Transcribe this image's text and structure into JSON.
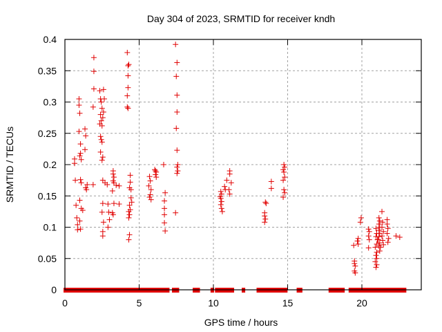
{
  "chart_data": {
    "type": "scatter",
    "title": "Day 304 of 2023, SRMTID for receiver kndh",
    "xlabel": "GPS time / hours",
    "ylabel": "SRMTID / TECUs",
    "xlim": [
      0,
      24
    ],
    "ylim": [
      0,
      0.4
    ],
    "xticks": [
      0,
      5,
      10,
      15,
      20
    ],
    "xtick_labels": [
      "0",
      "5",
      "10",
      "15",
      "20"
    ],
    "yticks": [
      0,
      0.05,
      0.1,
      0.15,
      0.2,
      0.25,
      0.3,
      0.35,
      0.4
    ],
    "ytick_labels": [
      "0",
      "0.05",
      "0.1",
      "0.15",
      "0.2",
      "0.25",
      "0.3",
      "0.35",
      "0.4"
    ],
    "grid": true,
    "marker": "plus",
    "color": "#e00000",
    "series": [
      {
        "name": "SRMTID",
        "points": [
          [
            0.65,
            0.209
          ],
          [
            0.65,
            0.202
          ],
          [
            0.7,
            0.175
          ],
          [
            0.75,
            0.135
          ],
          [
            0.8,
            0.115
          ],
          [
            0.85,
            0.104
          ],
          [
            0.85,
            0.096
          ],
          [
            0.95,
            0.305
          ],
          [
            0.95,
            0.295
          ],
          [
            1.0,
            0.282
          ],
          [
            0.95,
            0.253
          ],
          [
            1.05,
            0.233
          ],
          [
            1.05,
            0.218
          ],
          [
            1.0,
            0.214
          ],
          [
            1.1,
            0.208
          ],
          [
            1.05,
            0.176
          ],
          [
            1.1,
            0.171
          ],
          [
            1.0,
            0.143
          ],
          [
            1.1,
            0.13
          ],
          [
            1.0,
            0.11
          ],
          [
            1.05,
            0.097
          ],
          [
            1.2,
            0.127
          ],
          [
            1.35,
            0.257
          ],
          [
            1.4,
            0.246
          ],
          [
            1.35,
            0.224
          ],
          [
            1.4,
            0.163
          ],
          [
            1.45,
            0.16
          ],
          [
            1.5,
            0.168
          ],
          [
            1.9,
            0.168
          ],
          [
            1.95,
            0.371
          ],
          [
            1.95,
            0.349
          ],
          [
            1.95,
            0.321
          ],
          [
            1.9,
            0.292
          ],
          [
            2.35,
            0.318
          ],
          [
            2.4,
            0.305
          ],
          [
            2.45,
            0.3
          ],
          [
            2.5,
            0.29
          ],
          [
            2.4,
            0.28
          ],
          [
            2.45,
            0.27
          ],
          [
            2.35,
            0.265
          ],
          [
            2.5,
            0.262
          ],
          [
            2.4,
            0.245
          ],
          [
            2.45,
            0.24
          ],
          [
            2.5,
            0.236
          ],
          [
            2.4,
            0.22
          ],
          [
            2.55,
            0.212
          ],
          [
            2.5,
            0.207
          ],
          [
            2.6,
            0.32
          ],
          [
            2.65,
            0.305
          ],
          [
            2.6,
            0.284
          ],
          [
            2.55,
            0.275
          ],
          [
            2.55,
            0.175
          ],
          [
            2.7,
            0.171
          ],
          [
            2.55,
            0.138
          ],
          [
            2.5,
            0.124
          ],
          [
            2.6,
            0.108
          ],
          [
            2.55,
            0.093
          ],
          [
            2.55,
            0.086
          ],
          [
            2.85,
            0.168
          ],
          [
            2.9,
            0.137
          ],
          [
            2.95,
            0.124
          ],
          [
            3.0,
            0.112
          ],
          [
            2.9,
            0.1
          ],
          [
            3.25,
            0.19
          ],
          [
            3.25,
            0.185
          ],
          [
            3.3,
            0.18
          ],
          [
            3.25,
            0.174
          ],
          [
            3.3,
            0.171
          ],
          [
            3.2,
            0.158
          ],
          [
            3.45,
            0.167
          ],
          [
            3.65,
            0.166
          ],
          [
            3.3,
            0.138
          ],
          [
            3.65,
            0.137
          ],
          [
            3.2,
            0.123
          ],
          [
            3.25,
            0.12
          ],
          [
            4.2,
            0.379
          ],
          [
            4.3,
            0.36
          ],
          [
            4.25,
            0.358
          ],
          [
            4.25,
            0.342
          ],
          [
            4.25,
            0.323
          ],
          [
            4.2,
            0.31
          ],
          [
            4.2,
            0.292
          ],
          [
            4.25,
            0.29
          ],
          [
            4.4,
            0.183
          ],
          [
            4.4,
            0.172
          ],
          [
            4.35,
            0.163
          ],
          [
            4.45,
            0.16
          ],
          [
            4.45,
            0.147
          ],
          [
            4.5,
            0.14
          ],
          [
            4.35,
            0.135
          ],
          [
            4.4,
            0.128
          ],
          [
            4.3,
            0.125
          ],
          [
            4.35,
            0.12
          ],
          [
            4.3,
            0.115
          ],
          [
            4.35,
            0.088
          ],
          [
            4.3,
            0.08
          ],
          [
            5.7,
            0.181
          ],
          [
            5.75,
            0.174
          ],
          [
            5.65,
            0.166
          ],
          [
            5.8,
            0.16
          ],
          [
            5.75,
            0.152
          ],
          [
            5.7,
            0.148
          ],
          [
            5.8,
            0.144
          ],
          [
            6.05,
            0.192
          ],
          [
            6.1,
            0.19
          ],
          [
            6.15,
            0.188
          ],
          [
            6.1,
            0.184
          ],
          [
            6.15,
            0.18
          ],
          [
            6.65,
            0.2
          ],
          [
            6.75,
            0.155
          ],
          [
            6.7,
            0.142
          ],
          [
            6.7,
            0.13
          ],
          [
            6.7,
            0.12
          ],
          [
            6.7,
            0.107
          ],
          [
            6.75,
            0.094
          ],
          [
            7.45,
            0.392
          ],
          [
            7.55,
            0.363
          ],
          [
            7.5,
            0.341
          ],
          [
            7.55,
            0.311
          ],
          [
            7.55,
            0.284
          ],
          [
            7.5,
            0.258
          ],
          [
            7.55,
            0.223
          ],
          [
            7.6,
            0.2
          ],
          [
            7.55,
            0.196
          ],
          [
            7.6,
            0.19
          ],
          [
            7.55,
            0.186
          ],
          [
            7.45,
            0.123
          ],
          [
            10.5,
            0.157
          ],
          [
            10.55,
            0.153
          ],
          [
            10.45,
            0.149
          ],
          [
            10.5,
            0.146
          ],
          [
            10.55,
            0.141
          ],
          [
            10.5,
            0.136
          ],
          [
            10.55,
            0.13
          ],
          [
            10.6,
            0.125
          ],
          [
            10.75,
            0.165
          ],
          [
            10.8,
            0.16
          ],
          [
            10.9,
            0.175
          ],
          [
            11.1,
            0.19
          ],
          [
            11.1,
            0.185
          ],
          [
            11.05,
            0.16
          ],
          [
            11.1,
            0.153
          ],
          [
            11.2,
            0.171
          ],
          [
            13.5,
            0.14
          ],
          [
            13.55,
            0.138
          ],
          [
            13.45,
            0.123
          ],
          [
            13.45,
            0.118
          ],
          [
            13.5,
            0.113
          ],
          [
            13.45,
            0.108
          ],
          [
            13.9,
            0.173
          ],
          [
            13.9,
            0.162
          ],
          [
            14.75,
            0.2
          ],
          [
            14.8,
            0.196
          ],
          [
            14.7,
            0.192
          ],
          [
            14.75,
            0.188
          ],
          [
            14.8,
            0.18
          ],
          [
            14.7,
            0.175
          ],
          [
            14.75,
            0.16
          ],
          [
            14.8,
            0.155
          ],
          [
            14.7,
            0.148
          ],
          [
            19.45,
            0.071
          ],
          [
            19.5,
            0.046
          ],
          [
            19.5,
            0.042
          ],
          [
            19.55,
            0.038
          ],
          [
            19.5,
            0.03
          ],
          [
            19.55,
            0.027
          ],
          [
            19.75,
            0.082
          ],
          [
            19.7,
            0.078
          ],
          [
            19.75,
            0.073
          ],
          [
            19.95,
            0.115
          ],
          [
            19.9,
            0.108
          ],
          [
            20.45,
            0.097
          ],
          [
            20.5,
            0.093
          ],
          [
            20.45,
            0.086
          ],
          [
            20.5,
            0.08
          ],
          [
            20.45,
            0.067
          ],
          [
            20.95,
            0.098
          ],
          [
            21.0,
            0.09
          ],
          [
            20.95,
            0.085
          ],
          [
            21.05,
            0.08
          ],
          [
            21.0,
            0.073
          ],
          [
            20.9,
            0.068
          ],
          [
            21.0,
            0.06
          ],
          [
            20.95,
            0.055
          ],
          [
            21.0,
            0.05
          ],
          [
            20.9,
            0.045
          ],
          [
            21.0,
            0.04
          ],
          [
            20.95,
            0.036
          ],
          [
            21.15,
            0.115
          ],
          [
            21.2,
            0.11
          ],
          [
            21.15,
            0.105
          ],
          [
            21.2,
            0.1
          ],
          [
            21.15,
            0.095
          ],
          [
            21.2,
            0.09
          ],
          [
            21.15,
            0.085
          ],
          [
            21.1,
            0.08
          ],
          [
            21.2,
            0.075
          ],
          [
            21.15,
            0.07
          ],
          [
            21.25,
            0.068
          ],
          [
            21.2,
            0.062
          ],
          [
            21.35,
            0.125
          ],
          [
            21.4,
            0.108
          ],
          [
            21.35,
            0.1
          ],
          [
            21.45,
            0.093
          ],
          [
            21.35,
            0.086
          ],
          [
            21.4,
            0.079
          ],
          [
            21.45,
            0.072
          ],
          [
            21.7,
            0.112
          ],
          [
            21.7,
            0.105
          ],
          [
            21.75,
            0.098
          ],
          [
            21.7,
            0.09
          ],
          [
            21.8,
            0.082
          ],
          [
            21.75,
            0.076
          ],
          [
            22.3,
            0.086
          ],
          [
            22.55,
            0.084
          ]
        ]
      }
    ],
    "zero_segments_hours": [
      [
        0.0,
        0.05
      ],
      [
        0.2,
        1.1
      ],
      [
        1.15,
        2.35
      ],
      [
        2.45,
        2.6
      ],
      [
        2.65,
        4.35
      ],
      [
        4.4,
        4.45
      ],
      [
        4.5,
        6.35
      ],
      [
        6.4,
        6.95
      ],
      [
        7.3,
        7.6
      ],
      [
        8.7,
        8.9
      ],
      [
        8.95,
        9.0
      ],
      [
        9.9,
        9.95
      ],
      [
        10.2,
        10.9
      ],
      [
        10.95,
        11.3
      ],
      [
        12.0,
        12.05
      ],
      [
        13.0,
        13.65
      ],
      [
        13.7,
        14.35
      ],
      [
        14.45,
        14.5
      ],
      [
        14.55,
        14.8
      ],
      [
        14.85,
        14.9
      ],
      [
        15.7,
        15.9
      ],
      [
        17.85,
        18.45
      ],
      [
        18.5,
        18.75
      ],
      [
        19.2,
        20.95
      ],
      [
        21.0,
        21.05
      ],
      [
        21.1,
        21.15
      ],
      [
        21.25,
        21.7
      ],
      [
        21.8,
        22.9
      ]
    ]
  }
}
